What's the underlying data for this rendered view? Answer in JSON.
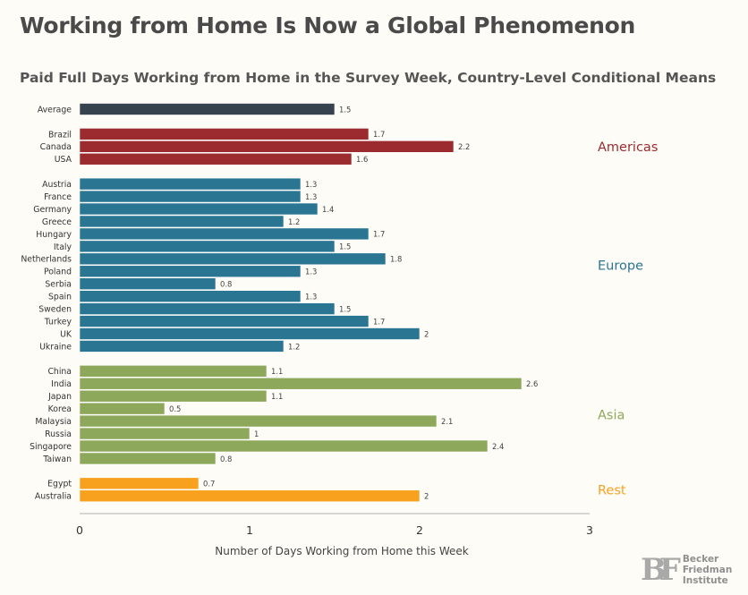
{
  "header": {
    "title": "Working from Home Is Now a Global Phenomenon",
    "subtitle": "Paid Full Days Working from Home in the Survey Week, Country-Level Conditional Means"
  },
  "logo": {
    "mark": "BF",
    "lines": [
      "Becker",
      "Friedman",
      "Institute"
    ]
  },
  "colors": {
    "Average": "#36424d",
    "Americas": "#9c2b2f",
    "Europe": "#2a7592",
    "Asia": "#8ea85b",
    "Rest": "#f7a11f"
  },
  "chart_data": {
    "type": "bar",
    "orientation": "horizontal",
    "xlabel": "Number of Days Working from Home this Week",
    "xlim": [
      0,
      3
    ],
    "xticks": [
      0,
      1,
      2,
      3
    ],
    "groups": [
      {
        "name": "",
        "label": "",
        "items": [
          {
            "category": "Average",
            "value": 1.5,
            "label": "1.5"
          }
        ]
      },
      {
        "name": "Americas",
        "label": "Americas",
        "items": [
          {
            "category": "Brazil",
            "value": 1.7,
            "label": "1.7"
          },
          {
            "category": "Canada",
            "value": 2.2,
            "label": "2.2"
          },
          {
            "category": "USA",
            "value": 1.6,
            "label": "1.6"
          }
        ]
      },
      {
        "name": "Europe",
        "label": "Europe",
        "items": [
          {
            "category": "Austria",
            "value": 1.3,
            "label": "1.3"
          },
          {
            "category": "France",
            "value": 1.3,
            "label": "1.3"
          },
          {
            "category": "Germany",
            "value": 1.4,
            "label": "1.4"
          },
          {
            "category": "Greece",
            "value": 1.2,
            "label": "1.2"
          },
          {
            "category": "Hungary",
            "value": 1.7,
            "label": "1.7"
          },
          {
            "category": "Italy",
            "value": 1.5,
            "label": "1.5"
          },
          {
            "category": "Netherlands",
            "value": 1.8,
            "label": "1.8"
          },
          {
            "category": "Poland",
            "value": 1.3,
            "label": "1.3"
          },
          {
            "category": "Serbia",
            "value": 0.8,
            "label": "0.8"
          },
          {
            "category": "Spain",
            "value": 1.3,
            "label": "1.3"
          },
          {
            "category": "Sweden",
            "value": 1.5,
            "label": "1.5"
          },
          {
            "category": "Turkey",
            "value": 1.7,
            "label": "1.7"
          },
          {
            "category": "UK",
            "value": 2,
            "label": "2"
          },
          {
            "category": "Ukraine",
            "value": 1.2,
            "label": "1.2"
          }
        ]
      },
      {
        "name": "Asia",
        "label": "Asia",
        "items": [
          {
            "category": "China",
            "value": 1.1,
            "label": "1.1"
          },
          {
            "category": "India",
            "value": 2.6,
            "label": "2.6"
          },
          {
            "category": "Japan",
            "value": 1.1,
            "label": "1.1"
          },
          {
            "category": "Korea",
            "value": 0.5,
            "label": "0.5"
          },
          {
            "category": "Malaysia",
            "value": 2.1,
            "label": "2.1"
          },
          {
            "category": "Russia",
            "value": 1,
            "label": "1"
          },
          {
            "category": "Singapore",
            "value": 2.4,
            "label": "2.4"
          },
          {
            "category": "Taiwan",
            "value": 0.8,
            "label": "0.8"
          }
        ]
      },
      {
        "name": "Rest",
        "label": "Rest",
        "items": [
          {
            "category": "Egypt",
            "value": 0.7,
            "label": "0.7"
          },
          {
            "category": "Australia",
            "value": 2,
            "label": "2"
          }
        ]
      }
    ]
  }
}
